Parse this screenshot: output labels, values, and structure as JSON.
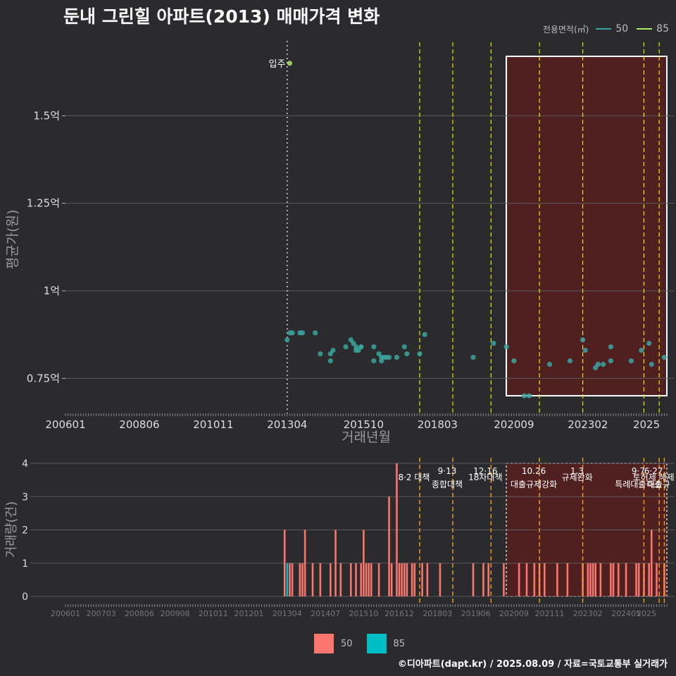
{
  "title": "둔내 그린힐 아파트(2013) 매매가격 변화",
  "footer": "©디아파트(dapt.kr) / 2025.08.09 / 자료=국토교통부 실거래가",
  "colors": {
    "background": "#2b2b2d",
    "series_50": "#3aa5a0",
    "series_85": "#a8e86a",
    "bar_50": "#f8766d",
    "bar_85": "#00bfc4",
    "policy_line": "#e6e600",
    "policy_line_bottom": "#f0a020",
    "highlight": "#5a1e1e"
  },
  "legend_top": {
    "title": "전용면적(㎡)",
    "items": [
      "50",
      "85"
    ]
  },
  "legend_bottom": {
    "items": [
      "50",
      "85"
    ]
  },
  "chart_data": [
    {
      "type": "scatter",
      "title": "둔내 그린힐 아파트(2013) 매매가격 변화",
      "xlabel": "거래년월",
      "ylabel": "평균가(원)",
      "x_ticks": [
        "200601",
        "200806",
        "201011",
        "201304",
        "201510",
        "201803",
        "202009",
        "202302",
        "2025"
      ],
      "y_ticks": [
        {
          "value": 0.75,
          "label": "0.75억"
        },
        {
          "value": 1.0,
          "label": "1억"
        },
        {
          "value": 1.25,
          "label": "1.25억"
        },
        {
          "value": 1.5,
          "label": "1.5억"
        }
      ],
      "ylim": [
        0.65,
        1.72
      ],
      "grid": true,
      "highlight_range": {
        "x_start": "2020-06",
        "x_end": "2025-09"
      },
      "move_in_line": {
        "x": "2013-04",
        "label": "입주"
      },
      "policy_lines": [
        "2017-08",
        "2018-09",
        "2019-12",
        "2021-07",
        "2022-12",
        "2024-12",
        "2025-06"
      ],
      "series": [
        {
          "name": "85",
          "points": [
            {
              "x": "2013-05",
              "y": 1.65
            }
          ]
        },
        {
          "name": "50",
          "points": [
            {
              "x": "2013-04",
              "y": 0.86
            },
            {
              "x": "2013-05",
              "y": 0.88
            },
            {
              "x": "2013-06",
              "y": 0.88
            },
            {
              "x": "2013-09",
              "y": 0.88
            },
            {
              "x": "2013-10",
              "y": 0.88
            },
            {
              "x": "2014-03",
              "y": 0.88
            },
            {
              "x": "2014-05",
              "y": 0.82
            },
            {
              "x": "2014-09",
              "y": 0.82
            },
            {
              "x": "2014-09",
              "y": 0.8
            },
            {
              "x": "2014-10",
              "y": 0.83
            },
            {
              "x": "2015-03",
              "y": 0.84
            },
            {
              "x": "2015-05",
              "y": 0.86
            },
            {
              "x": "2015-06",
              "y": 0.85
            },
            {
              "x": "2015-07",
              "y": 0.84
            },
            {
              "x": "2015-07",
              "y": 0.83
            },
            {
              "x": "2015-08",
              "y": 0.83
            },
            {
              "x": "2015-09",
              "y": 0.84
            },
            {
              "x": "2015-09",
              "y": 0.84
            },
            {
              "x": "2016-02",
              "y": 0.84
            },
            {
              "x": "2016-02",
              "y": 0.8
            },
            {
              "x": "2016-04",
              "y": 0.82
            },
            {
              "x": "2016-05",
              "y": 0.81
            },
            {
              "x": "2016-05",
              "y": 0.8
            },
            {
              "x": "2016-06",
              "y": 0.81
            },
            {
              "x": "2016-07",
              "y": 0.81
            },
            {
              "x": "2016-08",
              "y": 0.81
            },
            {
              "x": "2016-11",
              "y": 0.81
            },
            {
              "x": "2017-02",
              "y": 0.84
            },
            {
              "x": "2017-03",
              "y": 0.82
            },
            {
              "x": "2017-08",
              "y": 0.82
            },
            {
              "x": "2017-10",
              "y": 0.875
            },
            {
              "x": "2019-05",
              "y": 0.81
            },
            {
              "x": "2020-01",
              "y": 0.85
            },
            {
              "x": "2020-06",
              "y": 0.84
            },
            {
              "x": "2020-09",
              "y": 0.8
            },
            {
              "x": "2021-01",
              "y": 0.7
            },
            {
              "x": "2021-03",
              "y": 0.7
            },
            {
              "x": "2021-11",
              "y": 0.79
            },
            {
              "x": "2022-07",
              "y": 0.8
            },
            {
              "x": "2022-12",
              "y": 0.86
            },
            {
              "x": "2023-01",
              "y": 0.83
            },
            {
              "x": "2023-05",
              "y": 0.78
            },
            {
              "x": "2023-06",
              "y": 0.79
            },
            {
              "x": "2023-08",
              "y": 0.79
            },
            {
              "x": "2023-11",
              "y": 0.8
            },
            {
              "x": "2023-11",
              "y": 0.84
            },
            {
              "x": "2024-07",
              "y": 0.8
            },
            {
              "x": "2024-11",
              "y": 0.83
            },
            {
              "x": "2025-02",
              "y": 0.85
            },
            {
              "x": "2025-03",
              "y": 0.79
            },
            {
              "x": "2025-08",
              "y": 0.81
            }
          ]
        }
      ]
    },
    {
      "type": "bar",
      "xlabel": "",
      "ylabel": "거래량(건)",
      "x_ticks": [
        "200601",
        "200703",
        "200806",
        "200908",
        "201011",
        "201201",
        "201304",
        "201407",
        "201510",
        "201612",
        "201803",
        "201906",
        "202009",
        "202111",
        "202302",
        "202405",
        "2025"
      ],
      "y_ticks": [
        0,
        1,
        2,
        3,
        4
      ],
      "ylim": [
        0,
        4
      ],
      "grid": true,
      "highlight_range": {
        "x_start": "2020-06",
        "x_end": "2025-09"
      },
      "policy_annotations": [
        {
          "x": "2017-08",
          "date": "",
          "label": "8·2 대책"
        },
        {
          "x": "2018-09",
          "date": "9·13",
          "label": "종합대책"
        },
        {
          "x": "2019-12",
          "date": "12·16",
          "label": "18차대책"
        },
        {
          "x": "2021-07",
          "date": "10.26",
          "label": "대출규제강화"
        },
        {
          "x": "2022-12",
          "date": "1.3",
          "label": "규제완화"
        },
        {
          "x": "2024-12",
          "date": "9·7",
          "label": "특례대출축소"
        },
        {
          "x": "2025-06",
          "date": "6·27",
          "label": "토허제 해제"
        },
        {
          "x": "2025-08",
          "date": "",
          "label": "대출규"
        }
      ],
      "series": [
        {
          "name": "50",
          "bars": [
            {
              "x": "2013-03",
              "y": 2
            },
            {
              "x": "2013-05",
              "y": 1
            },
            {
              "x": "2013-06",
              "y": 1
            },
            {
              "x": "2013-09",
              "y": 1
            },
            {
              "x": "2013-10",
              "y": 1
            },
            {
              "x": "2013-11",
              "y": 2
            },
            {
              "x": "2014-02",
              "y": 1
            },
            {
              "x": "2014-05",
              "y": 1
            },
            {
              "x": "2014-09",
              "y": 1
            },
            {
              "x": "2014-11",
              "y": 2
            },
            {
              "x": "2015-01",
              "y": 1
            },
            {
              "x": "2015-05",
              "y": 1
            },
            {
              "x": "2015-07",
              "y": 1
            },
            {
              "x": "2015-09",
              "y": 1
            },
            {
              "x": "2015-10",
              "y": 2
            },
            {
              "x": "2015-11",
              "y": 1
            },
            {
              "x": "2015-12",
              "y": 1
            },
            {
              "x": "2016-01",
              "y": 1
            },
            {
              "x": "2016-04",
              "y": 1
            },
            {
              "x": "2016-08",
              "y": 3
            },
            {
              "x": "2016-09",
              "y": 1
            },
            {
              "x": "2016-11",
              "y": 4
            },
            {
              "x": "2016-12",
              "y": 1
            },
            {
              "x": "2017-01",
              "y": 1
            },
            {
              "x": "2017-02",
              "y": 1
            },
            {
              "x": "2017-03",
              "y": 1
            },
            {
              "x": "2017-05",
              "y": 1
            },
            {
              "x": "2017-06",
              "y": 1
            },
            {
              "x": "2017-09",
              "y": 1
            },
            {
              "x": "2017-11",
              "y": 1
            },
            {
              "x": "2018-04",
              "y": 1
            },
            {
              "x": "2019-05",
              "y": 1
            },
            {
              "x": "2019-09",
              "y": 1
            },
            {
              "x": "2019-11",
              "y": 1
            },
            {
              "x": "2020-05",
              "y": 1
            },
            {
              "x": "2020-11",
              "y": 1
            },
            {
              "x": "2021-02",
              "y": 1
            },
            {
              "x": "2021-05",
              "y": 1
            },
            {
              "x": "2021-07",
              "y": 1
            },
            {
              "x": "2021-09",
              "y": 1
            },
            {
              "x": "2022-02",
              "y": 1
            },
            {
              "x": "2022-06",
              "y": 1
            },
            {
              "x": "2022-12",
              "y": 1
            },
            {
              "x": "2023-02",
              "y": 1
            },
            {
              "x": "2023-03",
              "y": 1
            },
            {
              "x": "2023-04",
              "y": 1
            },
            {
              "x": "2023-05",
              "y": 1
            },
            {
              "x": "2023-07",
              "y": 1
            },
            {
              "x": "2023-11",
              "y": 1
            },
            {
              "x": "2023-12",
              "y": 1
            },
            {
              "x": "2024-02",
              "y": 1
            },
            {
              "x": "2024-05",
              "y": 1
            },
            {
              "x": "2024-09",
              "y": 1
            },
            {
              "x": "2024-10",
              "y": 1
            },
            {
              "x": "2024-12",
              "y": 1
            },
            {
              "x": "2025-02",
              "y": 1
            },
            {
              "x": "2025-03",
              "y": 2
            },
            {
              "x": "2025-05",
              "y": 1
            },
            {
              "x": "2025-08",
              "y": 1
            }
          ]
        },
        {
          "name": "85",
          "bars": [
            {
              "x": "2013-04",
              "y": 1
            }
          ]
        }
      ]
    }
  ]
}
